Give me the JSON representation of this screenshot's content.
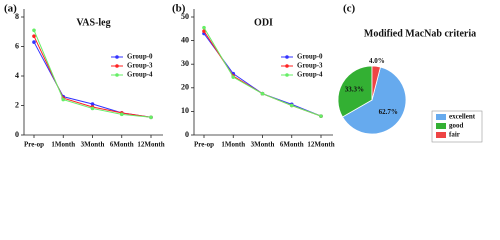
{
  "chart_data": [
    {
      "type": "line",
      "panel_label": "(a)",
      "title": "VAS-leg",
      "categories": [
        "Pre-op",
        "1Month",
        "3Month",
        "6Month",
        "12Month"
      ],
      "series": [
        {
          "name": "Group-0",
          "color": "#3333ff",
          "values": [
            6.3,
            2.6,
            2.1,
            1.5,
            1.2
          ]
        },
        {
          "name": "Group-3",
          "color": "#ff2222",
          "values": [
            6.7,
            2.5,
            1.9,
            1.5,
            1.2
          ]
        },
        {
          "name": "Group-4",
          "color": "#66ee66",
          "values": [
            7.1,
            2.4,
            1.8,
            1.4,
            1.2
          ]
        }
      ],
      "ylim": [
        0,
        8
      ],
      "yticks": [
        0,
        2,
        4,
        6,
        8
      ],
      "legend": "right"
    },
    {
      "type": "line",
      "panel_label": "(b)",
      "title": "ODI",
      "categories": [
        "Pre-op",
        "1Month",
        "3Month",
        "6Month",
        "12Month"
      ],
      "series": [
        {
          "name": "Group-0",
          "color": "#3333ff",
          "values": [
            43,
            26,
            17.5,
            13,
            8
          ]
        },
        {
          "name": "Group-3",
          "color": "#ff2222",
          "values": [
            44,
            25,
            17.5,
            12.5,
            8
          ]
        },
        {
          "name": "Group-4",
          "color": "#66ee66",
          "values": [
            45.5,
            24.5,
            17.5,
            12.5,
            8
          ]
        }
      ],
      "ylim": [
        0,
        50
      ],
      "yticks": [
        0,
        10,
        20,
        30,
        40,
        50
      ],
      "legend": "right"
    },
    {
      "type": "pie",
      "panel_label": "(c)",
      "title": "Modified MacNab criteria",
      "categories": [
        "excellent",
        "good",
        "fair"
      ],
      "values": [
        62.7,
        33.3,
        4.0
      ],
      "value_labels": [
        "62.7%",
        "33.3%",
        "4.0%"
      ],
      "colors": [
        "#66aaee",
        "#33b033",
        "#ee4444"
      ],
      "legend": "lower right"
    }
  ]
}
